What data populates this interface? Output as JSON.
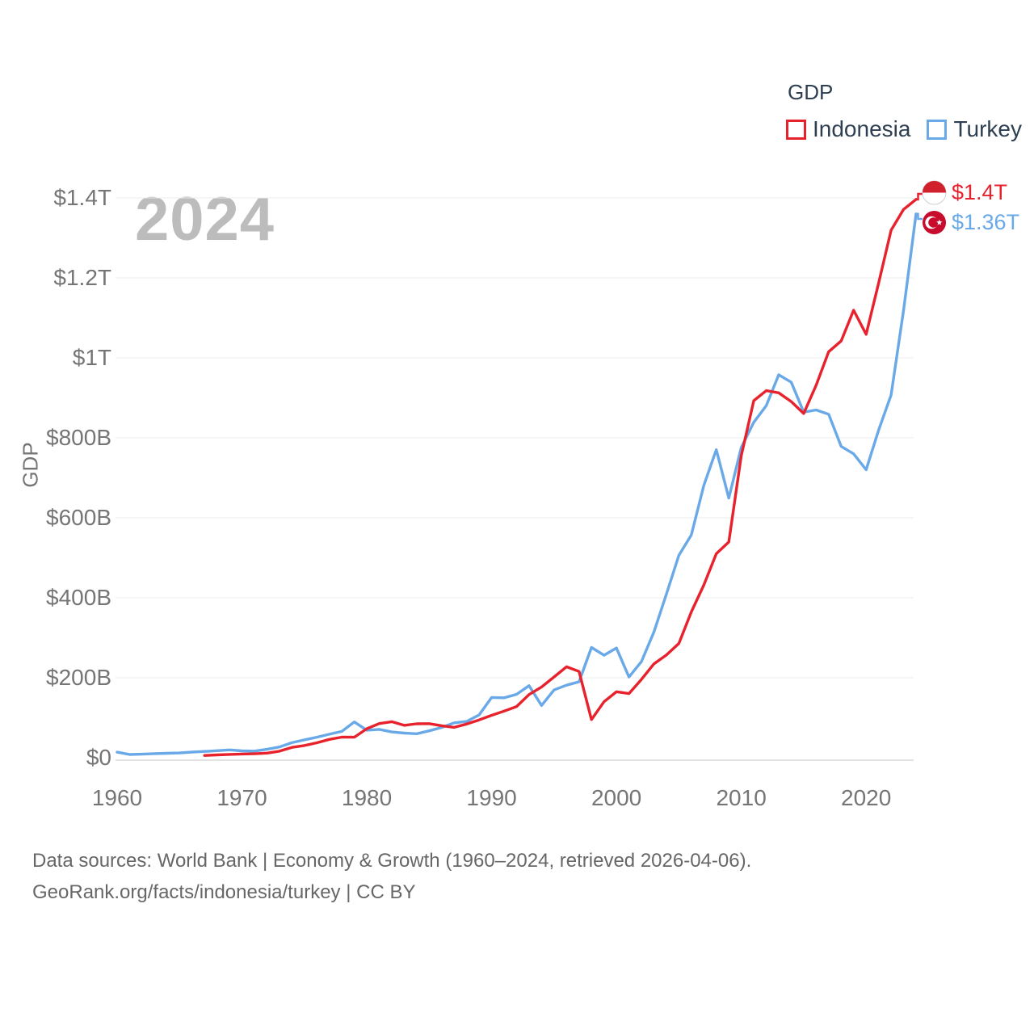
{
  "watermark": "2024",
  "legend": {
    "title": "GDP",
    "items": [
      {
        "label": "Indonesia",
        "color": "#e8222d"
      },
      {
        "label": "Turkey",
        "color": "#6aa9e8"
      }
    ]
  },
  "end_labels": {
    "indonesia": {
      "value": "$1.4T",
      "color": "#e8222d",
      "flag": "indonesia-flag"
    },
    "turkey": {
      "value": "$1.36T",
      "color": "#6aa9e8",
      "flag": "turkey-flag"
    }
  },
  "axes": {
    "y_label": "GDP",
    "y_ticks": [
      {
        "label": "$0",
        "value": 0
      },
      {
        "label": "$200B",
        "value": 200
      },
      {
        "label": "$400B",
        "value": 400
      },
      {
        "label": "$600B",
        "value": 600
      },
      {
        "label": "$800B",
        "value": 800
      },
      {
        "label": "$1T",
        "value": 1000
      },
      {
        "label": "$1.2T",
        "value": 1200
      },
      {
        "label": "$1.4T",
        "value": 1400
      }
    ],
    "x_ticks": [
      {
        "label": "1960",
        "value": 1960
      },
      {
        "label": "1970",
        "value": 1970
      },
      {
        "label": "1980",
        "value": 1980
      },
      {
        "label": "1990",
        "value": 1990
      },
      {
        "label": "2000",
        "value": 2000
      },
      {
        "label": "2010",
        "value": 2010
      },
      {
        "label": "2020",
        "value": 2020
      }
    ]
  },
  "footer": {
    "line1": "Data sources: World Bank | Economy & Growth (1960–2024, retrieved 2026-04-06).",
    "line2": "GeoRank.org/facts/indonesia/turkey | CC BY"
  },
  "chart_data": {
    "type": "line",
    "title": "GDP",
    "unit": "current US$, billions",
    "x_range": [
      1960,
      2024
    ],
    "y_range_billions": [
      0,
      1400
    ],
    "grid": "horizontal",
    "legend_position": "top-right",
    "series": [
      {
        "name": "Indonesia",
        "color": "#e8222d",
        "start_year": 1967,
        "end_year": 2024,
        "end_label": "$1.4T",
        "annual_values_billions": [
          5.7,
          7.1,
          8.3,
          9.2,
          9.9,
          11.6,
          16.3,
          25.8,
          30.5,
          37.3,
          45.8,
          51.5,
          51.4,
          72.5,
          85.5,
          90.2,
          81.0,
          84.9,
          85.3,
          80.0,
          75.9,
          84.3,
          94.5,
          106.1,
          116.6,
          128.0,
          158.0,
          176.9,
          202.1,
          227.4,
          215.7,
          95.4,
          140.0,
          165.0,
          160.4,
          195.7,
          234.8,
          256.8,
          285.9,
          364.6,
          432.2,
          510.2,
          539.6,
          755.1,
          893.0,
          917.9,
          912.5,
          890.8,
          860.9,
          931.9,
          1015.4,
          1042.3,
          1119.1,
          1058.7,
          1186.5,
          1319.1,
          1371.2,
          1396.3
        ]
      },
      {
        "name": "Turkey",
        "color": "#6aa9e8",
        "start_year": 1960,
        "end_year": 2024,
        "end_label": "$1.36T",
        "annual_values_billions": [
          14.0,
          8.0,
          8.9,
          10.4,
          11.2,
          11.9,
          14.1,
          15.7,
          17.5,
          19.5,
          17.1,
          16.6,
          21.0,
          26.9,
          37.6,
          44.6,
          51.3,
          58.7,
          65.9,
          89.4,
          68.8,
          71.0,
          64.5,
          61.7,
          60.0,
          67.2,
          75.7,
          87.2,
          90.8,
          107.1,
          150.7,
          150.0,
          158.5,
          180.2,
          130.7,
          169.5,
          181.5,
          189.8,
          275.8,
          256.4,
          274.3,
          201.8,
          240.2,
          314.6,
          408.9,
          506.3,
          557.1,
          681.3,
          770.4,
          649.3,
          776.0,
          838.8,
          880.6,
          957.8,
          938.9,
          864.3,
          869.7,
          859.0,
          778.5,
          759.9,
          720.3,
          819.0,
          907.1,
          1118.3,
          1360.0
        ]
      }
    ]
  }
}
